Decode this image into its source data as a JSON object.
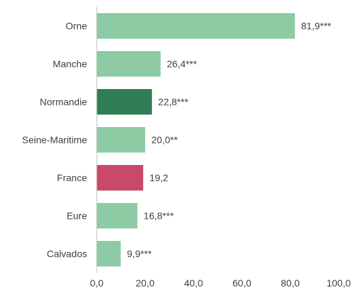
{
  "chart_data": {
    "type": "bar",
    "orientation": "horizontal",
    "categories": [
      "Orne",
      "Manche",
      "Normandie",
      "Seine-Maritime",
      "France",
      "Eure",
      "Calvados"
    ],
    "values": [
      81.9,
      26.4,
      22.8,
      20.0,
      19.2,
      16.8,
      9.9
    ],
    "value_labels": [
      "81,9***",
      "26,4***",
      "22,8***",
      "20,0**",
      "19,2",
      "16,8***",
      "9,9***"
    ],
    "bar_colors": [
      "#8CCBA3",
      "#8CCBA3",
      "#2E7D55",
      "#8CCBA3",
      "#C9496B",
      "#8CCBA3",
      "#8CCBA3"
    ],
    "xlim": [
      0,
      100
    ],
    "xticks": [
      0,
      20,
      40,
      60,
      80,
      100
    ],
    "xtick_labels": [
      "0,0",
      "20,0",
      "40,0",
      "60,0",
      "80,0",
      "100,0"
    ],
    "grid": false,
    "title": "",
    "xlabel": "",
    "ylabel": ""
  }
}
